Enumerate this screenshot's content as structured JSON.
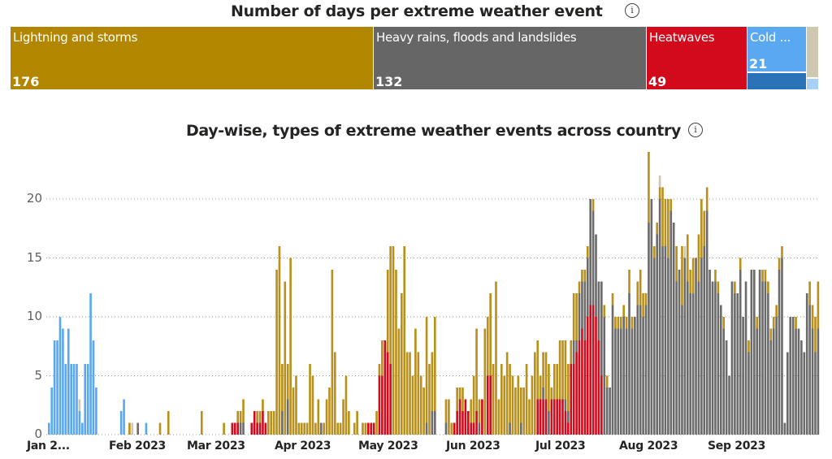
{
  "treemap": {
    "title": "Number of days per extreme weather event",
    "tiles": [
      {
        "label": "Lightning and storms",
        "value": "176",
        "color": "#b38600"
      },
      {
        "label": "Heavy rains, floods and landslides",
        "value": "132",
        "color": "#666666"
      },
      {
        "label": "Heatwaves",
        "value": "49",
        "color": "#d20a1c"
      },
      {
        "label": "Cold ...",
        "value": "21",
        "color": "#5aa8f0"
      }
    ],
    "extra_colors": {
      "cold_dark": "#2b73b8",
      "other_beige": "#cfc8b0",
      "other_lightblue": "#a8d1f7"
    }
  },
  "chart_data": {
    "type": "bar",
    "stacked": true,
    "title": "Day-wise, types of extreme weather events across country",
    "xlabel": "",
    "ylabel": "",
    "ylim": [
      0,
      24
    ],
    "yticks": [
      "0",
      "5",
      "10",
      "15",
      "20"
    ],
    "xticks": [
      "Jan 2...",
      "Feb 2023",
      "Mar 2023",
      "Apr 2023",
      "May 2023",
      "Jun 2023",
      "Jul 2023",
      "Aug 2023",
      "Sep 2023"
    ],
    "grid": true,
    "series_order": [
      "cold",
      "heatwave",
      "rain",
      "storm",
      "other"
    ],
    "colors": {
      "cold": "#5aa8f0",
      "heatwave": "#d20a1c",
      "rain": "#6b6b6b",
      "storm": "#b8901a",
      "other": "#cfc8b0",
      "cold2": "#2b73b8"
    },
    "days": [
      {
        "cold": 1
      },
      {
        "cold": 4
      },
      {
        "cold": 8
      },
      {
        "cold": 8
      },
      {
        "cold": 10
      },
      {
        "cold": 9
      },
      {
        "cold": 6
      },
      {
        "cold": 9
      },
      {
        "cold": 6
      },
      {
        "cold": 6
      },
      {
        "cold": 6
      },
      {
        "cold": 2,
        "other": 1
      },
      {
        "cold": 1
      },
      {
        "cold": 6
      },
      {
        "cold": 6
      },
      {
        "cold": 12
      },
      {
        "cold": 8
      },
      {
        "cold": 4
      },
      {},
      {},
      {},
      {},
      {},
      {},
      {},
      {},
      {
        "cold": 2
      },
      {
        "cold": 3
      },
      {},
      {
        "storm": 1
      },
      {
        "other": 1
      },
      {},
      {
        "rain": 1
      },
      {},
      {},
      {
        "cold": 1
      },
      {},
      {},
      {},
      {},
      {
        "storm": 1
      },
      {},
      {},
      {
        "storm": 2
      },
      {},
      {},
      {},
      {},
      {},
      {},
      {},
      {},
      {},
      {},
      {},
      {
        "storm": 2
      },
      {},
      {},
      {},
      {},
      {},
      {},
      {},
      {
        "storm": 1
      },
      {},
      {},
      {
        "heatwave": 1
      },
      {
        "heatwave": 1
      },
      {
        "heatwave": 1,
        "storm": 1
      },
      {
        "rain": 1,
        "storm": 1
      },
      {
        "rain": 1,
        "storm": 2
      },
      {},
      {},
      {
        "heatwave": 1
      },
      {
        "heatwave": 2
      },
      {
        "heatwave": 1,
        "storm": 1
      },
      {
        "heatwave": 1,
        "storm": 1
      },
      {
        "heatwave": 2,
        "storm": 1
      },
      {
        "heatwave": 1
      },
      {
        "storm": 2
      },
      {
        "storm": 2
      },
      {
        "storm": 2
      },
      {
        "storm": 14
      },
      {
        "storm": 16
      },
      {
        "storm": 4,
        "rain": 2
      },
      {
        "storm": 13
      },
      {
        "storm": 3,
        "rain": 3
      },
      {
        "storm": 15
      },
      {
        "storm": 4
      },
      {
        "storm": 5
      },
      {
        "storm": 1
      },
      {
        "storm": 1
      },
      {
        "storm": 1
      },
      {
        "storm": 1
      },
      {
        "storm": 6
      },
      {
        "storm": 5
      },
      {
        "storm": 1
      },
      {
        "storm": 3
      },
      {
        "rain": 1
      },
      {
        "storm": 1
      },
      {
        "storm": 3
      },
      {
        "storm": 4
      },
      {
        "storm": 14
      },
      {
        "storm": 7
      },
      {
        "storm": 1
      },
      {
        "storm": 1
      },
      {
        "storm": 3
      },
      {
        "storm": 5
      },
      {
        "storm": 2
      },
      {},
      {
        "storm": 1
      },
      {
        "storm": 2
      },
      {},
      {
        "storm": 1
      },
      {
        "storm": 1
      },
      {
        "heatwave": 1
      },
      {
        "heatwave": 1
      },
      {
        "heatwave": 1
      },
      {
        "storm": 2
      },
      {
        "heatwave": 5,
        "storm": 1
      },
      {
        "heatwave": 5,
        "storm": 3
      },
      {
        "heatwave": 8
      },
      {
        "heatwave": 7,
        "storm": 7
      },
      {
        "heatwave": 6,
        "storm": 10
      },
      {
        "storm": 16
      },
      {
        "storm": 14
      },
      {
        "storm": 9
      },
      {
        "storm": 12
      },
      {
        "storm": 16
      },
      {
        "storm": 7
      },
      {
        "storm": 7
      },
      {
        "storm": 5
      },
      {
        "storm": 9
      },
      {
        "storm": 7
      },
      {
        "storm": 5
      },
      {
        "storm": 4
      },
      {
        "rain": 1,
        "storm": 9
      },
      {
        "storm": 6
      },
      {
        "rain": 2,
        "storm": 5
      },
      {
        "rain": 2,
        "storm": 8
      },
      {},
      {},
      {},
      {
        "rain": 1,
        "storm": 2
      },
      {
        "storm": 3
      },
      {
        "storm": 1
      },
      {
        "heatwave": 1
      },
      {
        "heatwave": 2,
        "storm": 2
      },
      {
        "heatwave": 3,
        "storm": 1
      },
      {
        "heatwave": 2,
        "storm": 2
      },
      {
        "heatwave": 3
      },
      {
        "heatwave": 2
      },
      {
        "heatwave": 1,
        "storm": 2
      },
      {
        "heatwave": 1,
        "storm": 4
      },
      {
        "heatwave": 2,
        "storm": 7
      },
      {
        "rain": 1,
        "storm": 2
      },
      {
        "heatwave": 3
      },
      {
        "storm": 9
      },
      {
        "heatwave": 5,
        "storm": 5
      },
      {
        "heatwave": 5,
        "storm": 7
      },
      {
        "storm": 6
      },
      {
        "storm": 13
      },
      {
        "storm": 3
      },
      {
        "storm": 6
      },
      {
        "storm": 5
      },
      {
        "storm": 7
      },
      {
        "rain": 1,
        "storm": 5
      },
      {
        "storm": 5
      },
      {
        "storm": 4
      },
      {
        "storm": 5
      },
      {
        "rain": 1,
        "storm": 3
      },
      {
        "storm": 4
      },
      {
        "storm": 6
      },
      {
        "storm": 3
      },
      {
        "storm": 5
      },
      {
        "storm": 7
      },
      {
        "heatwave": 3,
        "storm": 5
      },
      {
        "heatwave": 3,
        "storm": 2
      },
      {
        "heatwave": 3,
        "rain": 1,
        "storm": 3
      },
      {
        "heatwave": 3,
        "storm": 4
      },
      {
        "rain": 2,
        "storm": 4
      },
      {
        "heatwave": 3,
        "storm": 1
      },
      {
        "heatwave": 3,
        "storm": 3
      },
      {
        "heatwave": 3,
        "storm": 3
      },
      {
        "heatwave": 3,
        "storm": 5
      },
      {
        "heatwave": 3,
        "storm": 5
      },
      {
        "heatwave": 2,
        "rain": 1,
        "storm": 5
      },
      {
        "heatwave": 1,
        "rain": 1,
        "storm": 4
      },
      {
        "heatwave": 6,
        "storm": 2
      },
      {
        "heatwave": 6,
        "rain": 2,
        "storm": 4
      },
      {
        "heatwave": 7,
        "rain": 1,
        "storm": 4
      },
      {
        "heatwave": 8,
        "rain": 4,
        "storm": 1
      },
      {
        "heatwave": 9,
        "rain": 4,
        "storm": 1
      },
      {
        "heatwave": 8,
        "rain": 5,
        "storm": 1
      },
      {
        "heatwave": 10,
        "rain": 5,
        "storm": 1
      },
      {
        "heatwave": 11,
        "rain": 9
      },
      {
        "heatwave": 11,
        "rain": 8,
        "storm": 1
      },
      {
        "heatwave": 10,
        "rain": 7
      },
      {
        "heatwave": 8,
        "rain": 5
      },
      {
        "heatwave": 5,
        "rain": 8
      },
      {
        "rain": 10,
        "storm": 1
      },
      {
        "rain": 4,
        "storm": 1
      },
      {
        "rain": 4
      },
      {
        "rain": 11,
        "storm": 1
      },
      {
        "rain": 9,
        "storm": 1
      },
      {
        "rain": 9,
        "storm": 1
      },
      {
        "rain": 9,
        "storm": 1
      },
      {
        "rain": 10,
        "storm": 1
      },
      {
        "rain": 9,
        "storm": 1
      },
      {
        "rain": 12,
        "storm": 2
      },
      {
        "rain": 9,
        "storm": 1
      },
      {
        "rain": 10
      },
      {
        "rain": 11,
        "storm": 2
      },
      {
        "rain": 11,
        "storm": 3
      },
      {
        "rain": 10,
        "storm": 2
      },
      {
        "rain": 11,
        "storm": 1
      },
      {
        "rain": 18,
        "storm": 6
      },
      {
        "rain": 20
      },
      {
        "rain": 15,
        "storm": 1
      },
      {
        "rain": 17,
        "storm": 1
      },
      {
        "rain": 20,
        "storm": 1,
        "other": 1
      },
      {
        "rain": 16,
        "storm": 5
      },
      {
        "rain": 16,
        "storm": 4
      },
      {
        "rain": 15,
        "storm": 5
      },
      {
        "rain": 19,
        "storm": 1
      },
      {
        "rain": 18
      },
      {
        "rain": 13,
        "storm": 3
      },
      {
        "rain": 14
      },
      {
        "rain": 11,
        "storm": 5
      },
      {
        "rain": 15,
        "other": 1
      },
      {
        "rain": 13,
        "storm": 4
      },
      {
        "rain": 12,
        "storm": 2
      },
      {
        "rain": 12,
        "storm": 3
      },
      {
        "rain": 15
      },
      {
        "rain": 13,
        "storm": 4
      },
      {
        "rain": 15,
        "storm": 5
      },
      {
        "rain": 16,
        "storm": 3
      },
      {
        "rain": 19,
        "storm": 2
      },
      {
        "rain": 14
      },
      {
        "rain": 13
      },
      {
        "rain": 13,
        "storm": 1
      },
      {
        "rain": 12,
        "storm": 1
      },
      {
        "rain": 11
      },
      {
        "rain": 9,
        "storm": 1
      },
      {
        "rain": 8
      },
      {
        "rain": 5
      },
      {
        "rain": 13
      },
      {
        "rain": 12,
        "storm": 1
      },
      {
        "rain": 12
      },
      {
        "rain": 14,
        "storm": 1
      },
      {
        "rain": 10
      },
      {
        "rain": 13
      },
      {
        "rain": 7,
        "storm": 1
      },
      {
        "rain": 14
      },
      {
        "rain": 14
      },
      {
        "rain": 9,
        "storm": 1
      },
      {
        "rain": 14
      },
      {
        "rain": 13,
        "storm": 1
      },
      {
        "rain": 13,
        "storm": 1
      },
      {
        "rain": 12,
        "storm": 1
      },
      {
        "rain": 8,
        "storm": 1
      },
      {
        "rain": 9,
        "storm": 1
      },
      {
        "rain": 10,
        "storm": 1
      },
      {
        "rain": 14,
        "storm": 1
      },
      {
        "rain": 15,
        "storm": 1
      },
      {
        "rain": 1
      },
      {
        "rain": 7
      },
      {
        "rain": 10
      },
      {
        "rain": 10
      },
      {
        "rain": 9,
        "storm": 1
      },
      {
        "rain": 9
      },
      {
        "rain": 8
      },
      {
        "rain": 7
      },
      {
        "rain": 12
      },
      {
        "rain": 11,
        "storm": 2
      },
      {
        "rain": 9,
        "storm": 2
      },
      {
        "rain": 7,
        "storm": 3
      },
      {
        "rain": 9,
        "storm": 4
      }
    ]
  }
}
